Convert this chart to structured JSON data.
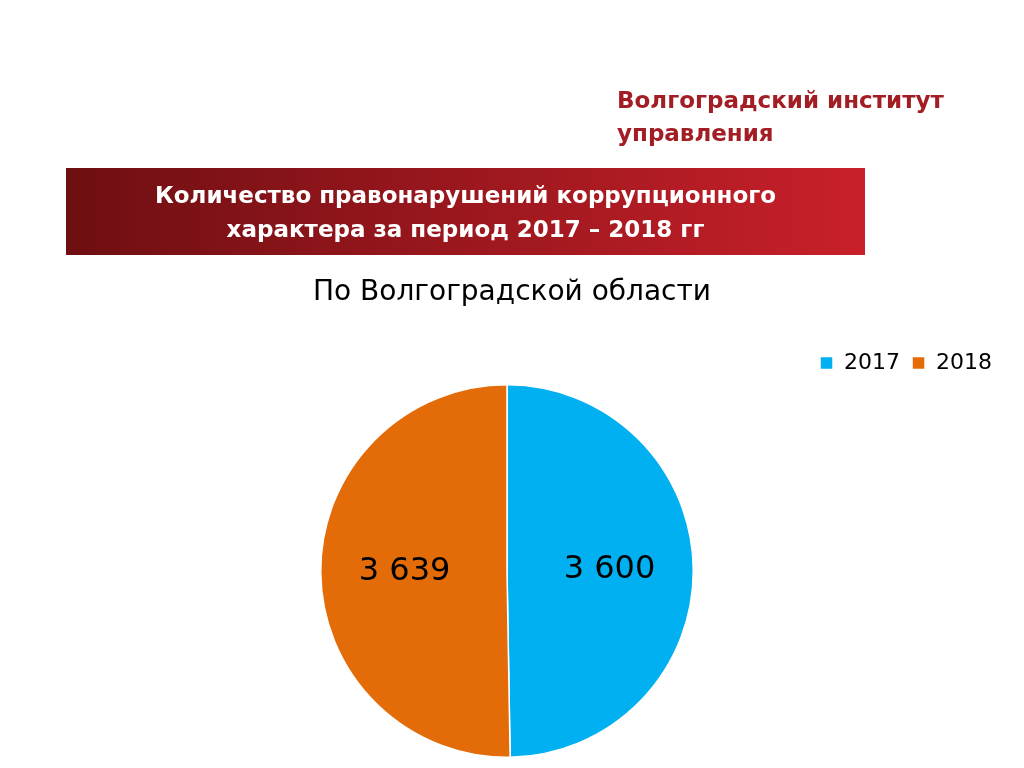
{
  "chart_data": {
    "type": "pie",
    "title": "Количество правонарушений коррупционного характера за период 2017 – 2018 гг",
    "subtitle": "По Волгоградской области",
    "annotations": [
      "Волгоградский институт управления"
    ],
    "categories": [
      "2017",
      "2018"
    ],
    "values": [
      3600,
      3639
    ],
    "value_labels": [
      "3 600",
      "3 639"
    ],
    "colors": [
      "#00b0f0",
      "#e36c09"
    ],
    "legend": "top right"
  }
}
